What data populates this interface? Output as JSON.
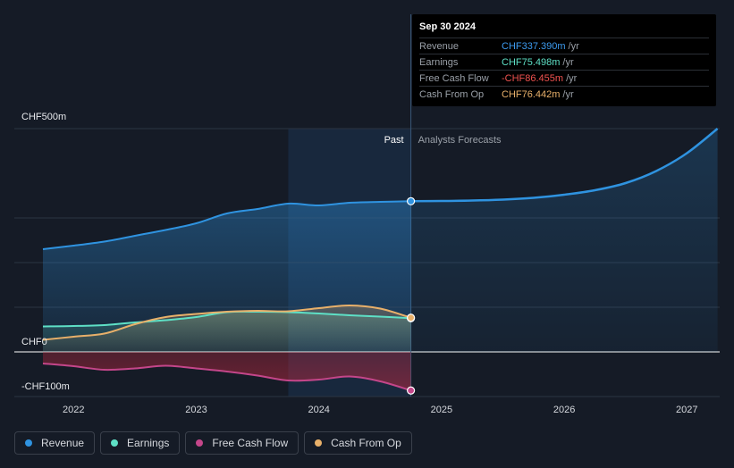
{
  "chart_data": {
    "type": "line",
    "currency": "CHF",
    "x_range": [
      2021.7,
      2027.25
    ],
    "y_range": [
      -100,
      500
    ],
    "x_ticks": [
      {
        "value": 2022,
        "label": "2022"
      },
      {
        "value": 2023,
        "label": "2023"
      },
      {
        "value": 2024,
        "label": "2024"
      },
      {
        "value": 2025,
        "label": "2025"
      },
      {
        "value": 2026,
        "label": "2026"
      },
      {
        "value": 2027,
        "label": "2027"
      }
    ],
    "y_ticks": [
      {
        "value": 500,
        "label": "CHF500m"
      },
      {
        "value": 0,
        "label": "CHF0"
      },
      {
        "value": -100,
        "label": "-CHF100m"
      }
    ],
    "past_label": "Past",
    "forecast_label": "Analysts Forecasts",
    "past_end": 2024.75,
    "highlight_start": 2023.75,
    "series": [
      {
        "name": "Revenue",
        "color": "#2f93e0",
        "fill": true,
        "points": [
          [
            2021.75,
            230
          ],
          [
            2022.0,
            238
          ],
          [
            2022.25,
            247
          ],
          [
            2022.5,
            260
          ],
          [
            2022.75,
            273
          ],
          [
            2023.0,
            288
          ],
          [
            2023.25,
            310
          ],
          [
            2023.5,
            320
          ],
          [
            2023.75,
            332
          ],
          [
            2024.0,
            328
          ],
          [
            2024.25,
            334
          ],
          [
            2024.5,
            336
          ],
          [
            2024.75,
            337.39
          ]
        ],
        "forecast": [
          [
            2024.75,
            337.39
          ],
          [
            2025.0,
            338
          ],
          [
            2025.25,
            339
          ],
          [
            2025.5,
            341
          ],
          [
            2025.75,
            345
          ],
          [
            2026.0,
            352
          ],
          [
            2026.25,
            362
          ],
          [
            2026.5,
            378
          ],
          [
            2026.75,
            405
          ],
          [
            2027.0,
            445
          ],
          [
            2027.25,
            500
          ]
        ]
      },
      {
        "name": "Earnings",
        "color": "#5ee0c6",
        "fill": true,
        "points": [
          [
            2021.75,
            57
          ],
          [
            2022.0,
            58
          ],
          [
            2022.25,
            60
          ],
          [
            2022.5,
            66
          ],
          [
            2022.75,
            71
          ],
          [
            2023.0,
            78
          ],
          [
            2023.25,
            89
          ],
          [
            2023.5,
            90
          ],
          [
            2023.75,
            89
          ],
          [
            2024.0,
            86
          ],
          [
            2024.25,
            82
          ],
          [
            2024.5,
            79
          ],
          [
            2024.75,
            75.498
          ]
        ]
      },
      {
        "name": "Free Cash Flow",
        "color": "#c4468a",
        "fill": true,
        "points": [
          [
            2021.75,
            -26
          ],
          [
            2022.0,
            -32
          ],
          [
            2022.25,
            -40
          ],
          [
            2022.5,
            -37
          ],
          [
            2022.75,
            -31
          ],
          [
            2023.0,
            -37
          ],
          [
            2023.25,
            -44
          ],
          [
            2023.5,
            -53
          ],
          [
            2023.75,
            -64
          ],
          [
            2024.0,
            -62
          ],
          [
            2024.25,
            -55
          ],
          [
            2024.5,
            -66
          ],
          [
            2024.75,
            -86.455
          ]
        ]
      },
      {
        "name": "Cash From Op",
        "color": "#e8b06a",
        "fill": true,
        "points": [
          [
            2021.75,
            27
          ],
          [
            2022.0,
            34
          ],
          [
            2022.25,
            41
          ],
          [
            2022.5,
            62
          ],
          [
            2022.75,
            78
          ],
          [
            2023.0,
            85
          ],
          [
            2023.25,
            90
          ],
          [
            2023.5,
            92
          ],
          [
            2023.75,
            91
          ],
          [
            2024.0,
            98
          ],
          [
            2024.25,
            104
          ],
          [
            2024.5,
            97
          ],
          [
            2024.75,
            76.442
          ]
        ]
      }
    ]
  },
  "tooltip": {
    "date": "Sep 30 2024",
    "rows": [
      {
        "label": "Revenue",
        "value": "CHF337.390m",
        "unit": "/yr",
        "color": "#3d9bef"
      },
      {
        "label": "Earnings",
        "value": "CHF75.498m",
        "unit": "/yr",
        "color": "#5ee0c6"
      },
      {
        "label": "Free Cash Flow",
        "value": "-CHF86.455m",
        "unit": "/yr",
        "color": "#f0524f"
      },
      {
        "label": "Cash From Op",
        "value": "CHF76.442m",
        "unit": "/yr",
        "color": "#e8b06a"
      }
    ]
  },
  "legend": [
    {
      "label": "Revenue",
      "color": "#2f93e0"
    },
    {
      "label": "Earnings",
      "color": "#5ee0c6"
    },
    {
      "label": "Free Cash Flow",
      "color": "#c4468a"
    },
    {
      "label": "Cash From Op",
      "color": "#e8b06a"
    }
  ]
}
